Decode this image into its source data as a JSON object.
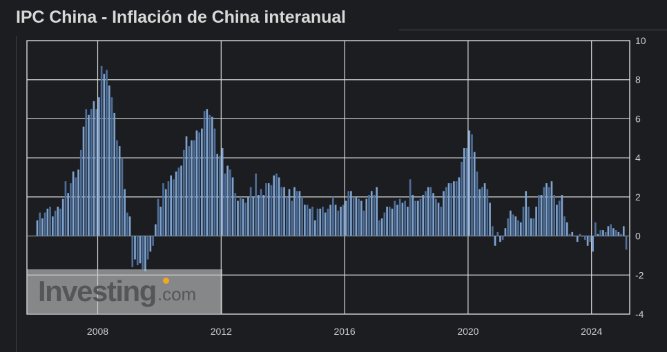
{
  "title": "IPC China - Inflación de China interanual",
  "watermark": {
    "brand": "Investing",
    "suffix": ".com",
    "accent_color": "#f5a623"
  },
  "colors": {
    "background": "#1c1d20",
    "bar_primary": "#4e6e9a",
    "bar_secondary": "#7ea3cf",
    "grid": "#d9d9d9",
    "axis_text": "#cfcfcf"
  },
  "chart_data": {
    "type": "bar",
    "x_start": "2006-01",
    "frequency": "monthly",
    "ylim": [
      -4,
      10
    ],
    "y_ticks": [
      -4,
      -2,
      0,
      2,
      4,
      6,
      8,
      10
    ],
    "x_ticks": [
      "2008",
      "2012",
      "2016",
      "2020",
      "2024"
    ],
    "grid": true,
    "y_axis_position": "right",
    "values": [
      0.8,
      1.2,
      0.9,
      1.2,
      1.4,
      1.5,
      1.0,
      1.3,
      1.5,
      1.4,
      1.9,
      2.8,
      2.2,
      2.7,
      3.3,
      3.0,
      3.4,
      4.4,
      5.6,
      6.5,
      6.2,
      6.5,
      6.9,
      6.5,
      7.1,
      8.7,
      8.3,
      8.5,
      7.7,
      7.1,
      6.3,
      4.9,
      4.6,
      4.0,
      2.4,
      1.2,
      1.0,
      -1.6,
      -1.2,
      -1.5,
      -1.4,
      -1.7,
      -1.8,
      -1.2,
      -0.8,
      -0.5,
      0.6,
      1.9,
      1.5,
      2.7,
      2.4,
      2.8,
      3.1,
      2.9,
      3.3,
      3.5,
      3.6,
      4.4,
      5.1,
      4.6,
      4.9,
      4.9,
      5.4,
      5.3,
      5.5,
      6.4,
      6.5,
      6.2,
      6.1,
      5.5,
      4.2,
      4.1,
      4.5,
      3.2,
      3.6,
      3.4,
      3.0,
      2.2,
      1.8,
      2.0,
      1.9,
      1.7,
      2.0,
      2.5,
      2.0,
      3.2,
      2.1,
      2.4,
      2.1,
      2.7,
      2.7,
      2.6,
      3.1,
      3.2,
      3.0,
      2.5,
      2.5,
      2.0,
      2.4,
      1.8,
      2.5,
      2.3,
      2.3,
      2.0,
      1.6,
      1.6,
      1.4,
      1.5,
      0.8,
      1.4,
      1.4,
      1.5,
      1.2,
      1.4,
      1.6,
      2.0,
      1.6,
      1.3,
      1.5,
      1.6,
      1.8,
      2.3,
      2.3,
      2.0,
      2.0,
      1.9,
      1.8,
      1.3,
      1.9,
      2.1,
      2.3,
      2.1,
      2.5,
      0.8,
      0.9,
      1.2,
      1.5,
      1.5,
      1.4,
      1.8,
      1.6,
      1.9,
      1.7,
      1.8,
      1.5,
      2.9,
      2.1,
      1.8,
      1.8,
      1.9,
      2.1,
      2.3,
      2.5,
      2.5,
      2.2,
      1.9,
      1.7,
      1.5,
      2.3,
      2.5,
      2.7,
      2.7,
      2.8,
      2.8,
      3.0,
      3.8,
      4.5,
      4.5,
      5.4,
      5.2,
      4.3,
      3.3,
      2.4,
      2.5,
      2.7,
      2.4,
      1.7,
      0.5,
      -0.5,
      0.2,
      -0.3,
      -0.2,
      0.4,
      0.9,
      1.3,
      1.1,
      1.0,
      0.8,
      0.7,
      1.5,
      2.3,
      1.5,
      0.9,
      0.9,
      1.5,
      2.1,
      2.1,
      2.5,
      2.7,
      2.5,
      2.8,
      2.1,
      1.6,
      1.8,
      2.1,
      1.0,
      0.7,
      0.1,
      0.2,
      0.0,
      -0.3,
      0.1,
      0.0,
      -0.2,
      -0.5,
      -0.3,
      -0.8,
      0.7,
      0.1,
      0.3,
      0.3,
      0.2,
      0.5,
      0.6,
      0.4,
      0.3,
      0.2,
      0.1,
      0.5,
      -0.7
    ]
  }
}
